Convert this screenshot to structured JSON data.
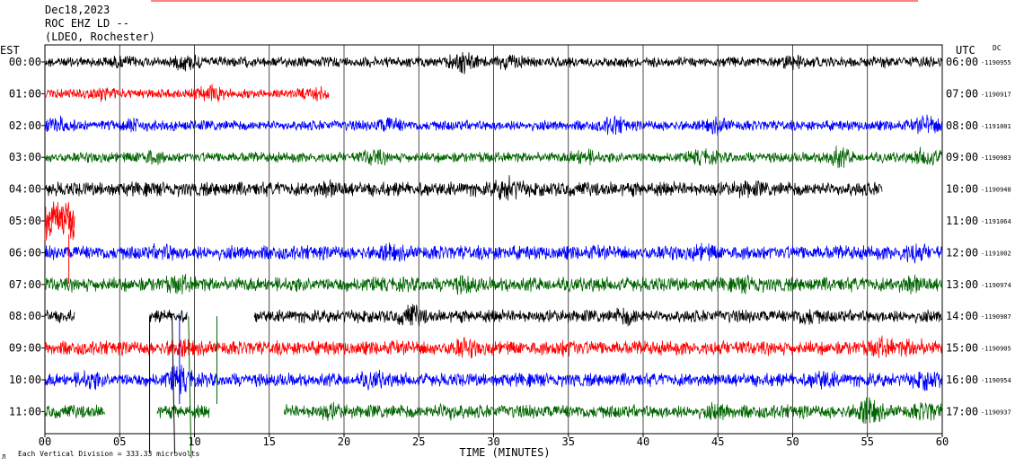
{
  "header": {
    "date": "Dec18,2023",
    "station": "ROC EHZ LD --",
    "network": "(LDEO, Rochester)"
  },
  "colors": {
    "black": "#000000",
    "red": "#ff0000",
    "blue": "#0000ff",
    "green": "#006400",
    "grid": "#000000"
  },
  "chart_data": {
    "type": "line",
    "title": "Dec18,2023 ROC EHZ LD -- (LDEO, Rochester)",
    "xlabel": "TIME (MINUTES)",
    "xlim": [
      0,
      60
    ],
    "x_ticks": [
      "00",
      "05",
      "10",
      "15",
      "20",
      "25",
      "30",
      "35",
      "40",
      "45",
      "50",
      "55",
      "60"
    ],
    "left_axis_label": "EST",
    "right_axis_label": "UTC",
    "right_note": "DC",
    "scale_note": "Each Vertical Division = 333.33 microvolts",
    "footer_mark": "Л",
    "grid": true,
    "rows": [
      {
        "est": "00:00",
        "utc": "06:00",
        "dc": "-1190955",
        "color": "black",
        "segments": [
          [
            0,
            60
          ]
        ],
        "amp": 0.65,
        "events": [
          [
            5,
            0.9
          ],
          [
            9.5,
            1.3
          ],
          [
            28,
            1.7
          ],
          [
            31,
            1.2
          ],
          [
            50,
            1.1
          ],
          [
            56,
            0.8
          ]
        ]
      },
      {
        "est": "01:00",
        "utc": "07:00",
        "dc": "-1190917",
        "color": "red",
        "segments": [
          [
            0,
            19
          ]
        ],
        "amp": 0.6,
        "events": [
          [
            4,
            1.1
          ],
          [
            11,
            1.4
          ],
          [
            18,
            1.2
          ]
        ]
      },
      {
        "est": "02:00",
        "utc": "08:00",
        "dc": "-1191001",
        "color": "blue",
        "segments": [
          [
            0,
            60
          ]
        ],
        "amp": 0.65,
        "events": [
          [
            1,
            1.2
          ],
          [
            6,
            1.1
          ],
          [
            23,
            1.3
          ],
          [
            38,
            1.4
          ],
          [
            45,
            1.2
          ],
          [
            59,
            1.5
          ]
        ]
      },
      {
        "est": "03:00",
        "utc": "09:00",
        "dc": "-1190983",
        "color": "green",
        "segments": [
          [
            0,
            60
          ]
        ],
        "amp": 0.65,
        "events": [
          [
            7,
            1.2
          ],
          [
            22,
            1.3
          ],
          [
            36,
            1.3
          ],
          [
            44,
            1.2
          ],
          [
            53,
            1.6
          ],
          [
            59,
            1.5
          ]
        ]
      },
      {
        "est": "04:00",
        "utc": "10:00",
        "dc": "-1190948",
        "color": "black",
        "segments": [
          [
            0,
            56
          ]
        ],
        "amp": 0.9,
        "events": [
          [
            19,
            1.4
          ],
          [
            31,
            1.8
          ],
          [
            47,
            1.3
          ]
        ]
      },
      {
        "est": "05:00",
        "utc": "11:00",
        "dc": "-1191064",
        "color": "red",
        "segments": [
          [
            0,
            2
          ]
        ],
        "amp": 1.2,
        "events": [
          [
            1,
            2.0
          ]
        ]
      },
      {
        "est": "06:00",
        "utc": "12:00",
        "dc": "-1191002",
        "color": "blue",
        "segments": [
          [
            0,
            60
          ]
        ],
        "amp": 0.9,
        "events": [
          [
            8,
            1.3
          ],
          [
            23,
            1.3
          ],
          [
            44,
            1.3
          ],
          [
            58,
            1.5
          ]
        ]
      },
      {
        "est": "07:00",
        "utc": "13:00",
        "dc": "-1190974",
        "color": "green",
        "segments": [
          [
            0,
            60
          ]
        ],
        "amp": 0.9,
        "events": [
          [
            9,
            1.4
          ],
          [
            28,
            1.4
          ],
          [
            47,
            1.3
          ],
          [
            58,
            1.5
          ]
        ]
      },
      {
        "est": "08:00",
        "utc": "14:00",
        "dc": "-1190987",
        "color": "black",
        "segments": [
          [
            0,
            2
          ],
          [
            7,
            9.5
          ],
          [
            14,
            60
          ]
        ],
        "amp": 0.8,
        "events": [
          [
            24.5,
            1.7
          ],
          [
            39,
            1.4
          ],
          [
            51,
            1.4
          ]
        ]
      },
      {
        "est": "09:00",
        "utc": "15:00",
        "dc": "-1190905",
        "color": "red",
        "segments": [
          [
            0,
            60
          ]
        ],
        "amp": 0.9,
        "events": [
          [
            9,
            1.4
          ],
          [
            28,
            1.5
          ],
          [
            35,
            1.3
          ],
          [
            56,
            1.5
          ],
          [
            58,
            1.4
          ]
        ]
      },
      {
        "est": "10:00",
        "utc": "16:00",
        "dc": "-1190954",
        "color": "blue",
        "segments": [
          [
            0,
            60
          ]
        ],
        "amp": 0.85,
        "events": [
          [
            3,
            1.4
          ],
          [
            9,
            2.0
          ],
          [
            22,
            1.4
          ],
          [
            52,
            1.5
          ],
          [
            59,
            1.5
          ]
        ]
      },
      {
        "est": "11:00",
        "utc": "17:00",
        "dc": "-1190937",
        "color": "green",
        "segments": [
          [
            0,
            4
          ],
          [
            7.5,
            11
          ],
          [
            16,
            60
          ]
        ],
        "amp": 0.85,
        "events": [
          [
            19,
            1.3
          ],
          [
            27,
            1.4
          ],
          [
            45,
            1.3
          ],
          [
            55,
            2.0
          ],
          [
            59,
            1.5
          ]
        ]
      }
    ]
  }
}
